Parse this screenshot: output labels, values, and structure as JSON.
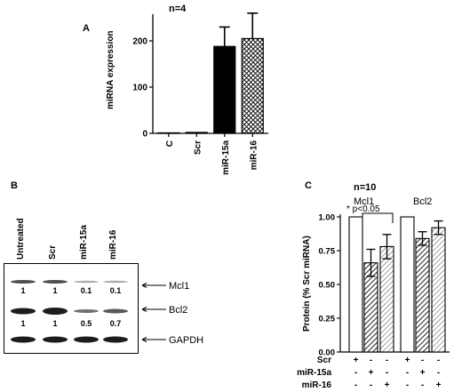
{
  "chart_data": [
    {
      "panel": "A",
      "type": "bar",
      "annotation": "n=4",
      "ylabel": "miRNA expression",
      "ylim": [
        0,
        250
      ],
      "yticks": [
        "0",
        "100",
        "200"
      ],
      "categories": [
        "C",
        "Scr",
        "miR-15a",
        "miR-16"
      ],
      "values": [
        1,
        2,
        188,
        205
      ],
      "errors": [
        0,
        0,
        42,
        55
      ],
      "fills": [
        "white",
        "white",
        "black",
        "crosshatch"
      ]
    },
    {
      "panel": "B",
      "type": "table",
      "lanes": [
        "Untreated",
        "Scr",
        "miR-15a",
        "miR-16"
      ],
      "rows": [
        {
          "label": "Mcl1",
          "values": [
            "1",
            "1",
            "0.1",
            "0.1"
          ]
        },
        {
          "label": "Bcl2",
          "values": [
            "1",
            "1",
            "0.5",
            "0.7"
          ]
        },
        {
          "label": "GAPDH",
          "values": []
        }
      ]
    },
    {
      "panel": "C",
      "type": "bar",
      "annotation": "n=10",
      "significance": "* p<0.05",
      "ylabel": "Protein (% Scr miRNA)",
      "ylim": [
        0,
        1.0
      ],
      "yticks": [
        "0.00",
        "0.25",
        "0.50",
        "0.75",
        "1.00"
      ],
      "groups": [
        {
          "name": "Mcl1",
          "values": [
            1.0,
            0.66,
            0.78
          ],
          "errors": [
            0,
            0.1,
            0.09
          ]
        },
        {
          "name": "Bcl2",
          "values": [
            1.0,
            0.84,
            0.92
          ],
          "errors": [
            0,
            0.05,
            0.05
          ]
        }
      ],
      "fills": [
        "white",
        "dense-hatch",
        "light-hatch"
      ],
      "condition_rows": [
        {
          "label": "Scr",
          "signs": [
            "+",
            "-",
            "-",
            "+",
            "-",
            "-"
          ]
        },
        {
          "label": "miR-15a",
          "signs": [
            "-",
            "+",
            "-",
            "-",
            "+",
            "-"
          ]
        },
        {
          "label": "miR-16",
          "signs": [
            "-",
            "-",
            "+",
            "-",
            "-",
            "+"
          ]
        }
      ]
    }
  ]
}
